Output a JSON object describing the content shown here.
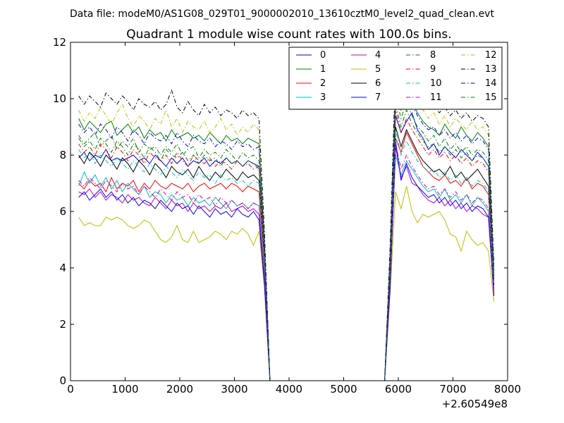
{
  "suptitle": "Data file: modeM0/AS1G08_029T01_9000002010_13610cztM0_level2_quad_clean.evt",
  "chart_data": {
    "type": "line",
    "title": "Quadrant 1 module wise count rates with 100.0s bins.",
    "xlabel": "",
    "ylabel": "",
    "x_offset_label": "+2.60549e8",
    "xlim": [
      0,
      8000
    ],
    "ylim": [
      0,
      12
    ],
    "xticks": [
      0,
      1000,
      2000,
      3000,
      4000,
      5000,
      6000,
      7000,
      8000
    ],
    "yticks": [
      0,
      2,
      4,
      6,
      8,
      10,
      12
    ],
    "grid": false,
    "legend": {
      "placement": "top-right",
      "columns": 4
    },
    "x": [
      150,
      250,
      350,
      450,
      550,
      650,
      750,
      850,
      950,
      1050,
      1150,
      1250,
      1350,
      1450,
      1550,
      1650,
      1750,
      1850,
      1950,
      2050,
      2150,
      2250,
      2350,
      2450,
      2550,
      2650,
      2750,
      2850,
      2950,
      3050,
      3150,
      3250,
      3350,
      3450,
      3550,
      3650,
      5750,
      5850,
      5950,
      6050,
      6150,
      6250,
      6350,
      6450,
      6550,
      6650,
      6750,
      6850,
      6950,
      7050,
      7150,
      7250,
      7350,
      7450,
      7550,
      7650,
      7750
    ],
    "series": [
      {
        "name": "0",
        "color": "#0000ff",
        "dash": "solid",
        "values": [
          7.9,
          8.1,
          7.8,
          8.0,
          7.9,
          8.2,
          7.8,
          7.9,
          7.8,
          7.9,
          8.0,
          7.8,
          7.9,
          7.7,
          8.0,
          7.8,
          7.6,
          7.9,
          7.7,
          7.9,
          7.6,
          7.8,
          7.7,
          7.9,
          7.6,
          7.8,
          7.7,
          7.9,
          7.7,
          7.8,
          7.6,
          7.8,
          7.7,
          7.6,
          4.6,
          0,
          0,
          4.2,
          9.4,
          8.8,
          9.2,
          9.5,
          8.9,
          8.6,
          8.2,
          8.4,
          8.0,
          8.3,
          8.1,
          7.9,
          8.2,
          8.0,
          7.8,
          8.1,
          7.9,
          7.6,
          3.6
        ]
      },
      {
        "name": "1",
        "color": "#008000",
        "dash": "solid",
        "values": [
          9.3,
          8.9,
          9.2,
          9.0,
          8.8,
          9.1,
          9.2,
          8.7,
          8.9,
          9.1,
          8.8,
          9.0,
          8.6,
          8.9,
          8.7,
          8.8,
          8.5,
          8.9,
          8.6,
          8.7,
          8.8,
          8.6,
          8.7,
          8.5,
          8.8,
          8.6,
          8.4,
          8.7,
          8.5,
          8.6,
          8.4,
          8.6,
          8.5,
          8.4,
          4.9,
          0,
          0,
          4.4,
          10.4,
          9.6,
          10.2,
          9.9,
          9.5,
          9.2,
          9.0,
          8.9,
          8.7,
          9.1,
          8.8,
          8.6,
          9.0,
          8.7,
          8.5,
          8.8,
          8.6,
          8.3,
          3.8
        ]
      },
      {
        "name": "2",
        "color": "#ff0000",
        "dash": "solid",
        "values": [
          7.0,
          6.8,
          7.1,
          6.9,
          7.0,
          6.7,
          7.2,
          6.8,
          7.0,
          6.9,
          7.1,
          6.7,
          7.0,
          6.8,
          7.1,
          6.9,
          6.8,
          7.0,
          6.9,
          6.8,
          7.0,
          6.7,
          6.9,
          7.0,
          6.8,
          6.9,
          7.0,
          6.8,
          7.0,
          6.9,
          6.7,
          6.9,
          6.8,
          6.7,
          4.1,
          0,
          0,
          3.9,
          8.6,
          8.1,
          8.8,
          8.4,
          8.0,
          7.6,
          7.4,
          7.2,
          7.1,
          7.3,
          7.0,
          7.1,
          6.9,
          7.2,
          6.8,
          7.0,
          6.9,
          6.6,
          3.2
        ]
      },
      {
        "name": "3",
        "color": "#00bfbf",
        "dash": "solid",
        "values": [
          6.9,
          7.4,
          7.0,
          7.3,
          6.9,
          7.2,
          6.8,
          7.1,
          6.7,
          7.0,
          6.8,
          6.6,
          6.9,
          6.5,
          6.7,
          6.6,
          6.3,
          6.6,
          6.4,
          6.5,
          6.2,
          6.5,
          6.3,
          6.4,
          6.2,
          6.5,
          6.3,
          6.1,
          6.4,
          6.2,
          6.3,
          6.1,
          6.3,
          6.2,
          3.7,
          0,
          0,
          3.5,
          8.0,
          7.3,
          7.8,
          7.5,
          7.2,
          6.9,
          6.7,
          6.8,
          6.5,
          6.8,
          6.4,
          6.6,
          6.3,
          6.6,
          6.2,
          6.5,
          6.3,
          6.0,
          3.1
        ]
      },
      {
        "name": "4",
        "color": "#bf00bf",
        "dash": "solid",
        "values": [
          6.7,
          6.6,
          6.8,
          6.5,
          6.7,
          6.4,
          6.6,
          6.5,
          6.3,
          6.6,
          6.4,
          6.5,
          6.3,
          6.2,
          6.5,
          6.3,
          6.1,
          6.4,
          6.2,
          6.3,
          6.0,
          6.3,
          6.1,
          6.2,
          6.0,
          6.2,
          6.1,
          6.3,
          6.0,
          6.1,
          6.2,
          6.0,
          6.1,
          5.9,
          3.5,
          0,
          0,
          3.4,
          8.3,
          7.2,
          7.6,
          7.0,
          6.9,
          6.6,
          6.4,
          6.3,
          6.5,
          6.2,
          6.4,
          6.1,
          6.3,
          6.0,
          6.2,
          6.1,
          5.9,
          5.8,
          3.0
        ]
      },
      {
        "name": "5",
        "color": "#bfbf00",
        "dash": "solid",
        "values": [
          5.8,
          5.5,
          5.6,
          5.5,
          5.5,
          5.8,
          5.7,
          5.8,
          5.7,
          5.5,
          5.4,
          5.5,
          5.7,
          5.6,
          5.3,
          5.0,
          4.9,
          5.1,
          5.5,
          5.0,
          4.9,
          5.3,
          4.9,
          5.0,
          5.1,
          5.3,
          5.2,
          5.0,
          5.3,
          5.2,
          5.4,
          5.2,
          4.8,
          5.3,
          3.3,
          0,
          0,
          3.1,
          6.7,
          6.1,
          6.9,
          6.0,
          5.6,
          5.9,
          5.8,
          5.9,
          6.0,
          5.7,
          5.2,
          5.1,
          4.6,
          5.3,
          5.0,
          4.8,
          4.9,
          4.6,
          2.8
        ]
      },
      {
        "name": "6",
        "color": "#000000",
        "dash": "solid",
        "values": [
          8.0,
          7.7,
          8.1,
          7.9,
          7.6,
          8.0,
          7.8,
          7.5,
          7.9,
          7.7,
          7.4,
          7.8,
          7.6,
          7.3,
          7.7,
          7.5,
          7.2,
          7.6,
          7.4,
          7.3,
          7.5,
          7.2,
          7.6,
          7.3,
          7.1,
          7.4,
          7.2,
          7.5,
          7.3,
          7.1,
          7.4,
          7.2,
          7.3,
          7.1,
          4.3,
          0,
          0,
          4.0,
          9.0,
          8.3,
          8.9,
          8.5,
          8.1,
          7.8,
          7.6,
          7.4,
          7.5,
          7.3,
          7.6,
          7.2,
          7.4,
          7.1,
          7.3,
          7.5,
          7.2,
          6.9,
          3.4
        ]
      },
      {
        "name": "7",
        "color": "#0000ff",
        "dash": "solid",
        "values": [
          6.5,
          6.7,
          6.4,
          6.6,
          6.8,
          6.5,
          6.7,
          6.4,
          6.6,
          6.3,
          6.5,
          6.2,
          6.4,
          6.3,
          6.1,
          6.4,
          6.2,
          6.0,
          6.3,
          6.1,
          6.2,
          5.9,
          6.2,
          6.0,
          5.8,
          6.1,
          5.9,
          6.0,
          5.8,
          6.1,
          5.9,
          5.8,
          6.0,
          5.7,
          3.4,
          0,
          0,
          3.3,
          8.5,
          7.1,
          7.7,
          7.2,
          6.9,
          6.7,
          6.5,
          6.6,
          6.3,
          6.5,
          6.2,
          6.4,
          6.1,
          6.3,
          6.0,
          6.2,
          6.1,
          5.8,
          3.0
        ]
      },
      {
        "name": "8",
        "color": "#008000",
        "dash": "dashdot",
        "values": [
          8.7,
          8.4,
          8.6,
          8.8,
          8.3,
          8.5,
          8.7,
          8.2,
          8.5,
          8.3,
          8.6,
          8.1,
          8.4,
          8.2,
          8.3,
          8.0,
          8.3,
          8.1,
          8.4,
          8.0,
          8.2,
          8.3,
          7.9,
          8.2,
          8.0,
          8.1,
          7.9,
          8.2,
          8.0,
          7.8,
          8.1,
          7.9,
          8.0,
          7.8,
          4.7,
          0,
          0,
          4.3,
          10.1,
          9.3,
          9.9,
          9.4,
          9.0,
          8.8,
          8.5,
          8.7,
          8.3,
          8.6,
          8.2,
          8.4,
          8.1,
          8.3,
          8.0,
          8.2,
          8.1,
          7.8,
          3.7
        ]
      },
      {
        "name": "9",
        "color": "#ff0000",
        "dash": "dashdot",
        "values": [
          8.4,
          8.1,
          8.3,
          8.0,
          8.4,
          8.2,
          7.9,
          8.3,
          8.1,
          7.8,
          8.2,
          8.0,
          7.7,
          8.1,
          7.9,
          7.8,
          8.0,
          7.7,
          8.1,
          7.8,
          7.6,
          8.0,
          7.8,
          7.7,
          7.9,
          7.6,
          7.8,
          7.7,
          7.5,
          7.8,
          7.6,
          7.7,
          7.5,
          7.6,
          4.5,
          0,
          0,
          4.1,
          9.6,
          8.8,
          9.3,
          8.9,
          8.6,
          8.3,
          8.0,
          8.2,
          7.9,
          8.1,
          7.8,
          8.0,
          7.7,
          7.9,
          7.6,
          7.8,
          7.7,
          7.4,
          3.5
        ]
      },
      {
        "name": "10",
        "color": "#00bfbf",
        "dash": "dashdot",
        "values": [
          8.2,
          7.9,
          8.1,
          7.7,
          8.0,
          7.8,
          7.6,
          7.9,
          7.7,
          7.5,
          7.8,
          7.6,
          7.4,
          7.7,
          7.5,
          7.3,
          7.6,
          7.4,
          7.2,
          7.5,
          7.3,
          7.1,
          7.4,
          7.2,
          7.3,
          7.0,
          7.3,
          7.1,
          7.2,
          7.0,
          7.1,
          6.9,
          7.1,
          7.0,
          4.2,
          0,
          0,
          3.9,
          8.9,
          8.0,
          8.5,
          8.1,
          7.8,
          7.6,
          7.4,
          7.5,
          7.2,
          7.4,
          7.1,
          7.3,
          7.0,
          7.2,
          6.9,
          7.1,
          7.0,
          6.7,
          3.3
        ]
      },
      {
        "name": "11",
        "color": "#bf00bf",
        "dash": "dashdot",
        "values": [
          7.1,
          6.9,
          7.2,
          7.0,
          6.8,
          7.1,
          6.9,
          6.7,
          7.0,
          6.8,
          6.9,
          6.6,
          6.9,
          6.7,
          6.5,
          6.8,
          6.6,
          6.4,
          6.7,
          6.5,
          6.6,
          6.3,
          6.6,
          6.4,
          6.5,
          6.2,
          6.5,
          6.3,
          6.4,
          6.2,
          6.3,
          6.1,
          6.3,
          6.2,
          3.8,
          0,
          0,
          3.6,
          8.4,
          7.5,
          8.0,
          7.6,
          7.3,
          7.0,
          6.8,
          6.9,
          6.6,
          6.8,
          6.5,
          6.7,
          6.4,
          6.6,
          6.3,
          6.5,
          6.4,
          6.1,
          3.1
        ]
      },
      {
        "name": "12",
        "color": "#bfbf00",
        "dash": "dashdot",
        "values": [
          9.6,
          9.2,
          9.5,
          9.3,
          9.7,
          9.4,
          9.1,
          9.5,
          9.8,
          9.3,
          9.0,
          9.4,
          9.2,
          8.9,
          9.3,
          9.1,
          9.6,
          9.0,
          9.3,
          8.8,
          9.2,
          9.0,
          8.9,
          9.2,
          8.8,
          9.0,
          9.3,
          8.9,
          9.1,
          8.7,
          9.0,
          8.8,
          9.1,
          8.9,
          5.1,
          0,
          0,
          4.6,
          10.9,
          10.0,
          10.6,
          10.2,
          9.8,
          9.6,
          9.3,
          9.5,
          9.1,
          9.4,
          9.0,
          9.3,
          9.1,
          8.9,
          9.2,
          8.9,
          9.0,
          8.7,
          4.0
        ]
      },
      {
        "name": "13",
        "color": "#000000",
        "dash": "dashdot",
        "values": [
          10.1,
          9.8,
          10.1,
          9.9,
          9.7,
          10.2,
          10.0,
          9.8,
          10.1,
          9.9,
          9.6,
          10.0,
          9.8,
          9.7,
          9.9,
          9.6,
          9.8,
          10.3,
          9.7,
          9.5,
          9.9,
          9.6,
          9.4,
          9.8,
          9.5,
          9.7,
          9.4,
          9.6,
          9.5,
          9.3,
          9.6,
          9.4,
          9.5,
          9.3,
          5.3,
          0,
          0,
          4.8,
          11.2,
          10.4,
          11.0,
          10.6,
          10.2,
          9.9,
          9.7,
          9.8,
          9.5,
          9.7,
          9.4,
          9.6,
          9.3,
          9.5,
          9.2,
          9.4,
          9.3,
          9.0,
          4.1
        ]
      },
      {
        "name": "14",
        "color": "#0000ff",
        "dash": "dashdot",
        "values": [
          9.1,
          8.8,
          9.0,
          8.7,
          9.1,
          8.9,
          8.6,
          9.0,
          8.8,
          8.5,
          8.9,
          8.7,
          8.4,
          8.8,
          8.6,
          8.5,
          8.7,
          8.4,
          8.8,
          8.5,
          8.3,
          8.7,
          8.5,
          8.4,
          8.6,
          8.3,
          8.5,
          8.4,
          8.2,
          8.5,
          8.3,
          8.4,
          8.2,
          8.3,
          4.9,
          0,
          0,
          4.5,
          10.5,
          9.7,
          10.1,
          9.8,
          9.4,
          9.1,
          8.9,
          9.0,
          8.7,
          8.9,
          8.6,
          8.8,
          8.5,
          8.7,
          8.4,
          8.6,
          8.5,
          8.2,
          3.9
        ]
      },
      {
        "name": "15",
        "color": "#008000",
        "dash": "dashdot",
        "values": [
          8.6,
          8.3,
          8.5,
          8.2,
          8.6,
          8.4,
          8.1,
          8.5,
          8.3,
          8.0,
          8.4,
          8.2,
          7.9,
          8.3,
          8.1,
          7.8,
          8.2,
          8.0,
          7.9,
          8.1,
          7.8,
          8.0,
          7.7,
          8.0,
          7.8,
          7.9,
          7.6,
          7.9,
          7.7,
          7.8,
          7.6,
          7.8,
          7.7,
          7.5,
          4.6,
          0,
          0,
          4.2,
          9.8,
          9.0,
          9.6,
          9.1,
          8.8,
          8.5,
          8.3,
          8.4,
          8.1,
          8.3,
          8.0,
          8.2,
          7.9,
          8.1,
          7.8,
          8.0,
          7.9,
          7.6,
          3.6
        ]
      }
    ]
  }
}
